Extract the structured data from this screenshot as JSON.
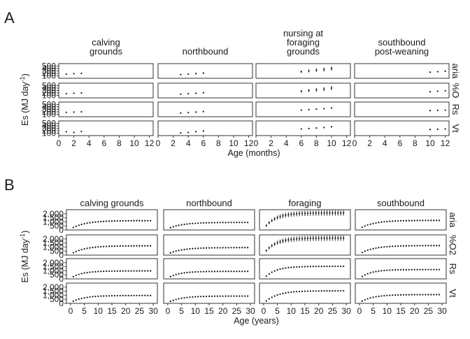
{
  "panel_labels": [
    "A",
    "B"
  ],
  "chart_data": [
    {
      "type": "scatter",
      "panel": "A",
      "facets_columns": [
        "calving\ngrounds",
        "northbound",
        "nursing at\nforaging\ngrounds",
        "southbound\npost-weaning"
      ],
      "facets_rows": [
        "aria",
        "%O",
        "Rs",
        "Vt"
      ],
      "xlabel": "Age (months)",
      "ylabel": "Es (MJ day-1)",
      "xlim": [
        0,
        12.5
      ],
      "xticks": [
        0,
        2,
        4,
        6,
        8,
        10,
        12
      ],
      "ylim": [
        0,
        600
      ],
      "yticks": [
        100,
        200,
        300,
        400,
        500
      ],
      "grid": false,
      "cells": [
        [
          {
            "x": [
              1,
              2,
              3
            ],
            "y": [
              170,
              190,
              200
            ],
            "err": [
              0,
              0,
              0
            ]
          },
          {
            "x": [
              3,
              4,
              5,
              6
            ],
            "y": [
              150,
              170,
              190,
              210
            ],
            "err": [
              0,
              0,
              0,
              0
            ]
          },
          {
            "x": [
              6,
              7,
              8,
              9,
              10
            ],
            "y": [
              270,
              300,
              330,
              360,
              400
            ],
            "err": [
              50,
              60,
              70,
              80,
              90
            ]
          },
          {
            "x": [
              10,
              11,
              12
            ],
            "y": [
              250,
              270,
              290
            ],
            "err": [
              0,
              0,
              0
            ]
          }
        ],
        [
          {
            "x": [
              1,
              2,
              3
            ],
            "y": [
              170,
              190,
              200
            ],
            "err": [
              0,
              0,
              0
            ]
          },
          {
            "x": [
              3,
              4,
              5,
              6
            ],
            "y": [
              150,
              170,
              190,
              210
            ],
            "err": [
              0,
              0,
              0,
              0
            ]
          },
          {
            "x": [
              6,
              7,
              8,
              9,
              10
            ],
            "y": [
              270,
              300,
              330,
              360,
              400
            ],
            "err": [
              50,
              60,
              70,
              80,
              90
            ]
          },
          {
            "x": [
              10,
              11,
              12
            ],
            "y": [
              250,
              270,
              290
            ],
            "err": [
              0,
              0,
              0
            ]
          }
        ],
        [
          {
            "x": [
              1,
              2,
              3
            ],
            "y": [
              180,
              190,
              200
            ],
            "err": [
              0,
              0,
              0
            ]
          },
          {
            "x": [
              3,
              4,
              5,
              6
            ],
            "y": [
              150,
              170,
              190,
              210
            ],
            "err": [
              0,
              0,
              0,
              0
            ]
          },
          {
            "x": [
              6,
              7,
              8,
              9,
              10
            ],
            "y": [
              270,
              290,
              310,
              330,
              360
            ],
            "err": [
              0,
              0,
              0,
              0,
              0
            ]
          },
          {
            "x": [
              10,
              11,
              12
            ],
            "y": [
              250,
              260,
              270
            ],
            "err": [
              0,
              0,
              0
            ]
          }
        ],
        [
          {
            "x": [
              1,
              2,
              3
            ],
            "y": [
              160,
              130,
              170
            ],
            "err": [
              0,
              0,
              0
            ]
          },
          {
            "x": [
              3,
              4,
              5,
              6
            ],
            "y": [
              110,
              130,
              160,
              190
            ],
            "err": [
              0,
              0,
              0,
              0
            ]
          },
          {
            "x": [
              6,
              7,
              8,
              9,
              10
            ],
            "y": [
              270,
              290,
              310,
              330,
              360
            ],
            "err": [
              0,
              0,
              0,
              0,
              0
            ]
          },
          {
            "x": [
              10,
              11,
              12
            ],
            "y": [
              250,
              260,
              270
            ],
            "err": [
              0,
              0,
              0
            ]
          }
        ]
      ]
    },
    {
      "type": "scatter",
      "panel": "B",
      "facets_columns": [
        "calving grounds",
        "northbound",
        "foraging",
        "southbound"
      ],
      "facets_rows": [
        "aria",
        "%O2",
        "Rs",
        "Vt"
      ],
      "xlabel": "Age (years)",
      "ylabel": "Es (MJ day-1)",
      "xlim": [
        -1.5,
        31.5
      ],
      "xticks": [
        0,
        5,
        10,
        15,
        20,
        25,
        30
      ],
      "ylim": [
        0,
        2500
      ],
      "yticks": [
        0,
        500,
        1000,
        1500,
        2000
      ],
      "yticklabels": [
        "0",
        "500",
        "1,000",
        "1,500",
        "2,000"
      ],
      "grid": false,
      "curves": [
        [
          {
            "base": 300,
            "amp": 850,
            "k": 0.2,
            "err": 90
          },
          {
            "base": 280,
            "amp": 650,
            "k": 0.2,
            "err": 35
          },
          {
            "base": 550,
            "amp": 1550,
            "k": 0.25,
            "err": 330
          },
          {
            "base": 330,
            "amp": 850,
            "k": 0.2,
            "err": 90
          }
        ],
        [
          {
            "base": 300,
            "amp": 850,
            "k": 0.2,
            "err": 90
          },
          {
            "base": 280,
            "amp": 650,
            "k": 0.2,
            "err": 35
          },
          {
            "base": 550,
            "amp": 1550,
            "k": 0.25,
            "err": 330
          },
          {
            "base": 330,
            "amp": 850,
            "k": 0.2,
            "err": 90
          }
        ],
        [
          {
            "base": 280,
            "amp": 700,
            "k": 0.25,
            "err": 0
          },
          {
            "base": 280,
            "amp": 650,
            "k": 0.25,
            "err": 0
          },
          {
            "base": 350,
            "amp": 1200,
            "k": 0.25,
            "err": 0
          },
          {
            "base": 300,
            "amp": 850,
            "k": 0.25,
            "err": 0
          }
        ],
        [
          {
            "base": 270,
            "amp": 700,
            "k": 0.22,
            "err": 0
          },
          {
            "base": 250,
            "amp": 650,
            "k": 0.22,
            "err": 0
          },
          {
            "base": 300,
            "amp": 1250,
            "k": 0.22,
            "err": 0
          },
          {
            "base": 280,
            "amp": 800,
            "k": 0.22,
            "err": 0
          }
        ]
      ]
    }
  ]
}
